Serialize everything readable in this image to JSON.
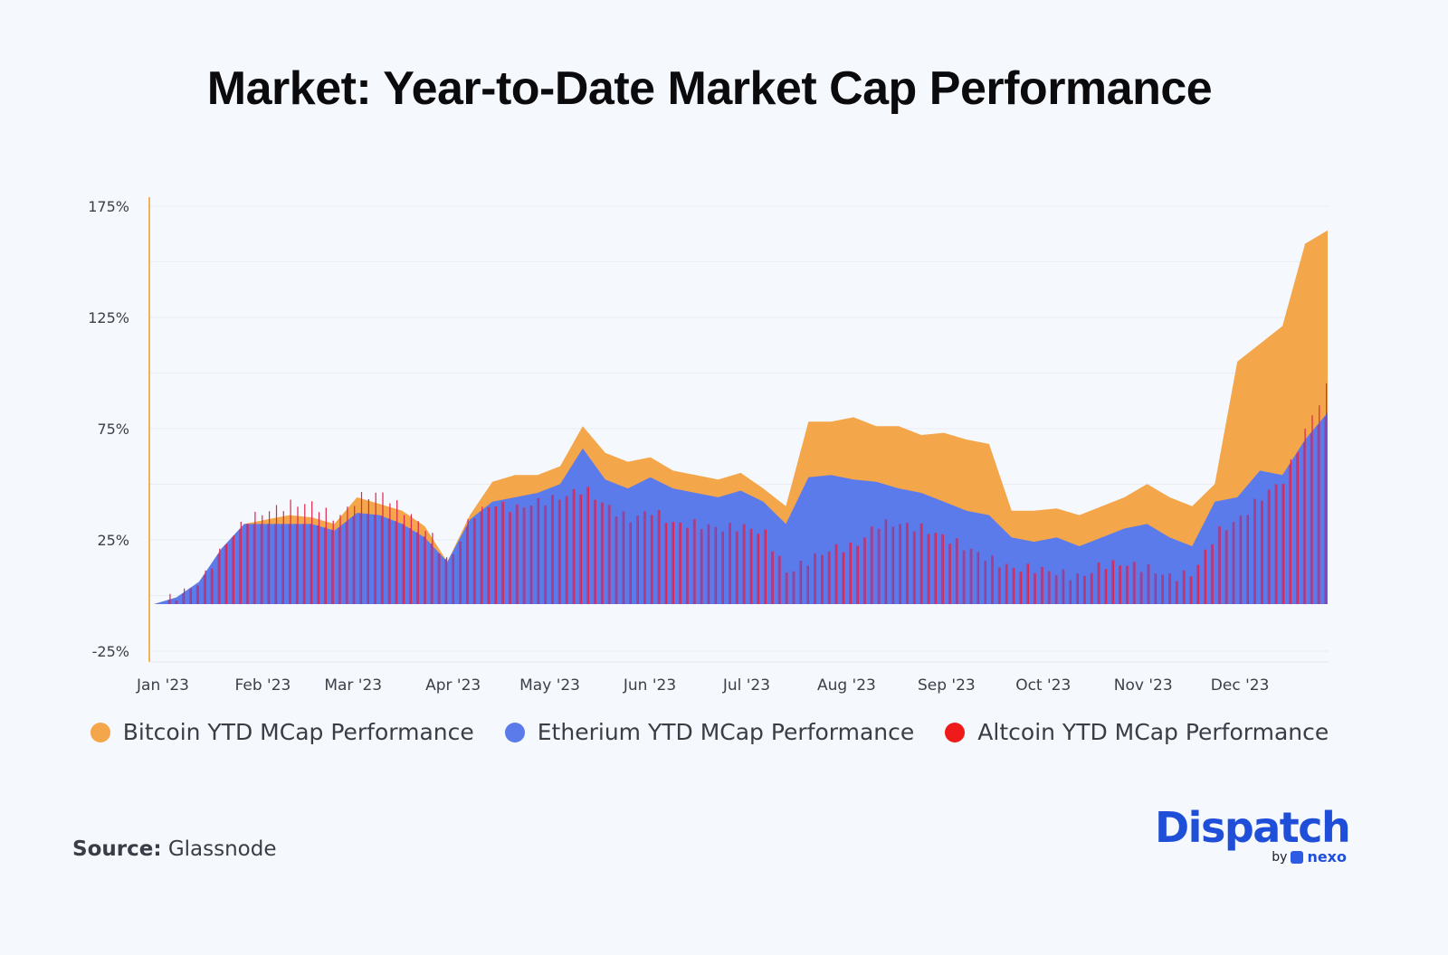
{
  "title": "Market: Year-to-Date Market Cap Performance",
  "legend": [
    {
      "label": "Bitcoin YTD MCap Performance",
      "color": "#f4a64a"
    },
    {
      "label": "Etherium YTD MCap Performance",
      "color": "#5b7bea"
    },
    {
      "label": "Altcoin YTD MCap Performance",
      "color": "#ef1b1b"
    }
  ],
  "source": {
    "label": "Source:",
    "value": "Glassnode"
  },
  "brand": {
    "name": "Dispatch",
    "by": "by",
    "partner": "nexo"
  },
  "chart_data": {
    "type": "area",
    "title": "Market: Year-to-Date Market Cap Performance",
    "xlabel": "",
    "ylabel": "",
    "ylim": [
      -25,
      180
    ],
    "yticks": [
      -25,
      25,
      75,
      125,
      175
    ],
    "ytick_labels": [
      "-25%",
      "25%",
      "75%",
      "125%",
      "175%"
    ],
    "gridlines_every": 25,
    "grid": true,
    "legend_position": "bottom",
    "x_tick_labels": [
      "Jan '23",
      "Feb '23",
      "Mar '23",
      "Apr '23",
      "May '23",
      "Jun '23",
      "Jul '23",
      "Aug '23",
      "Sep '23",
      "Oct '23",
      "Nov '23",
      "Dec '23"
    ],
    "x_unit": "week of 2023 (0 = Jan 1, 52 = Dec 31)",
    "x": [
      0,
      1,
      2,
      3,
      4,
      5,
      6,
      7,
      8,
      9,
      10,
      11,
      12,
      13,
      14,
      15,
      16,
      17,
      18,
      19,
      20,
      21,
      22,
      23,
      24,
      25,
      26,
      27,
      28,
      29,
      30,
      31,
      32,
      33,
      34,
      35,
      36,
      37,
      38,
      39,
      40,
      41,
      42,
      43,
      44,
      45,
      46,
      47,
      48,
      49,
      50,
      51,
      52
    ],
    "series": [
      {
        "name": "Bitcoin YTD MCap Performance",
        "color": "#f4a64a",
        "values": [
          0,
          3,
          10,
          25,
          36,
          38,
          40,
          39,
          36,
          48,
          45,
          42,
          35,
          19,
          40,
          55,
          58,
          58,
          62,
          80,
          68,
          64,
          66,
          60,
          58,
          56,
          59,
          52,
          44,
          82,
          82,
          84,
          80,
          80,
          76,
          77,
          74,
          72,
          42,
          42,
          43,
          40,
          44,
          48,
          54,
          48,
          44,
          54,
          109,
          117,
          125,
          162,
          168
        ]
      },
      {
        "name": "Etherium YTD MCap Performance",
        "color": "#5b7bea",
        "values": [
          0,
          3,
          10,
          25,
          36,
          36,
          36,
          36,
          33,
          41,
          40,
          36,
          30,
          19,
          38,
          46,
          48,
          50,
          54,
          70,
          56,
          52,
          57,
          52,
          50,
          48,
          51,
          46,
          36,
          57,
          58,
          56,
          55,
          52,
          50,
          46,
          42,
          40,
          30,
          28,
          30,
          26,
          30,
          34,
          36,
          30,
          26,
          46,
          48,
          60,
          58,
          74,
          86
        ]
      },
      {
        "name": "Altcoin YTD MCap Performance",
        "color": "#ef1b1b",
        "values": [
          0,
          4,
          10,
          26,
          38,
          42,
          45,
          45,
          38,
          48,
          50,
          42,
          34,
          18,
          40,
          45,
          43,
          46,
          48,
          52,
          44,
          38,
          42,
          36,
          36,
          34,
          35,
          32,
          14,
          20,
          25,
          26,
          36,
          36,
          34,
          30,
          25,
          20,
          16,
          16,
          14,
          12,
          18,
          18,
          16,
          12,
          14,
          32,
          38,
          48,
          56,
          80,
          100
        ]
      }
    ]
  }
}
